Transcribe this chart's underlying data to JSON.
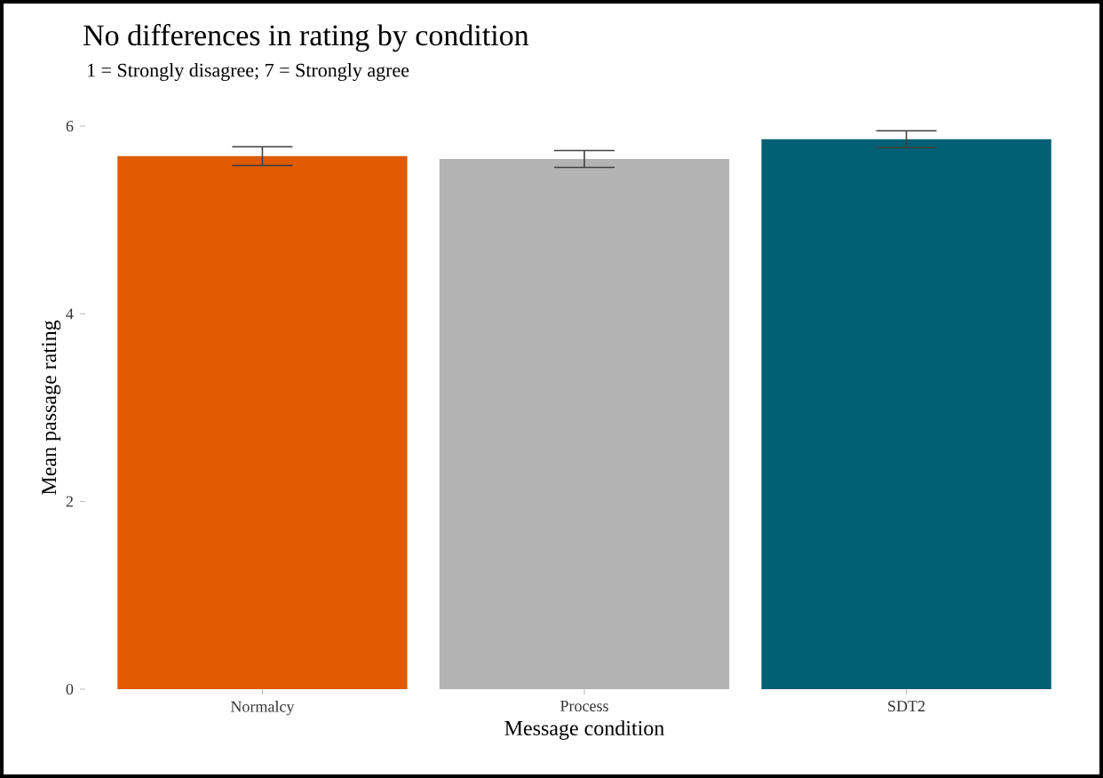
{
  "chart_data": {
    "type": "bar",
    "title": "No differences in rating by condition",
    "subtitle": "1 = Strongly disagree; 7 = Strongly agree",
    "xlabel": "Message condition",
    "ylabel": "Mean passage rating",
    "categories": [
      "Normalcy",
      "Process",
      "SDT2"
    ],
    "values": [
      5.68,
      5.65,
      5.86
    ],
    "errors": [
      0.1,
      0.09,
      0.09
    ],
    "colors": [
      "#e05a00",
      "#b3b3b3",
      "#005f73"
    ],
    "ylim": [
      0,
      6
    ],
    "yticks": [
      0,
      2,
      4,
      6
    ],
    "grid": false
  }
}
